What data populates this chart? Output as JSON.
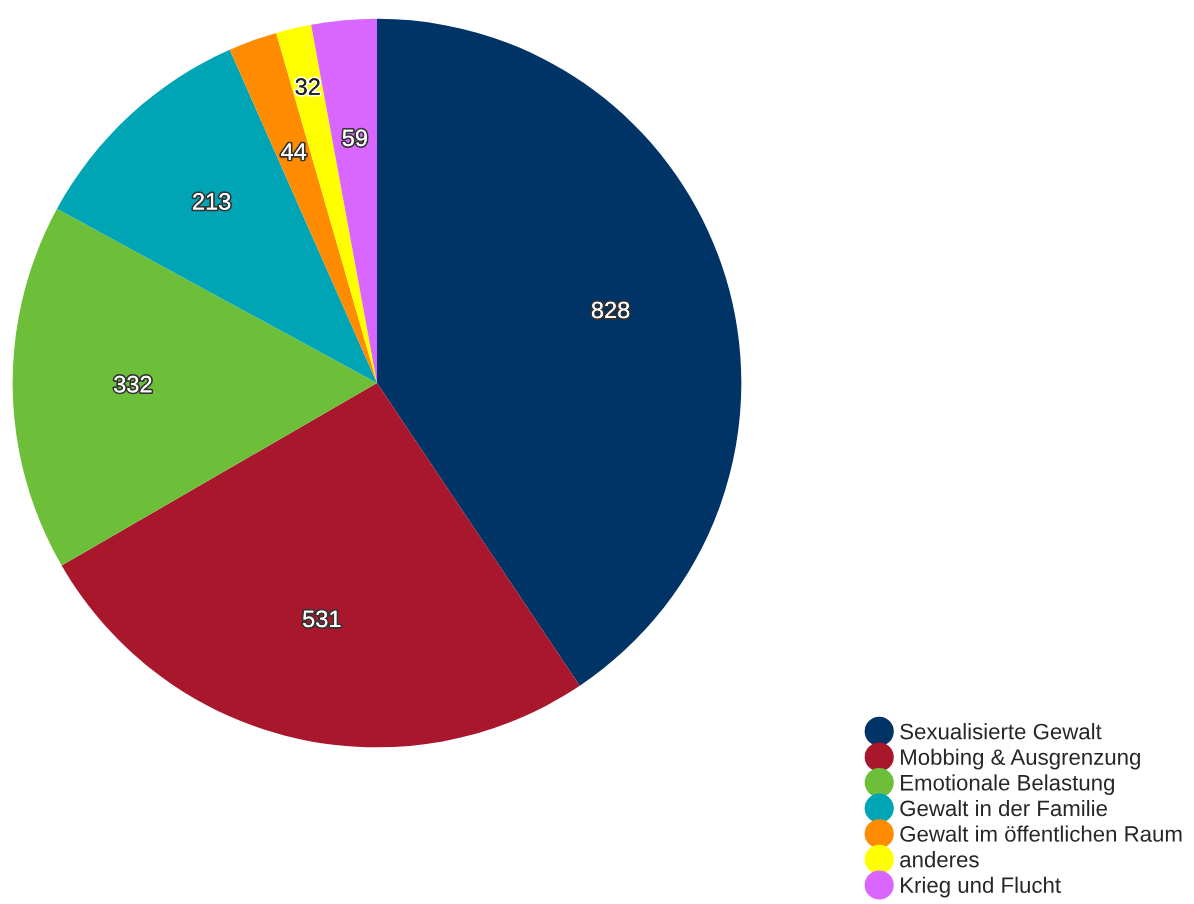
{
  "chart_data": {
    "type": "pie",
    "categories": [
      "Sexualisierte Gewalt",
      "Mobbing & Ausgrenzung",
      "Emotionale Belastung",
      "Gewalt in der Familie",
      "Gewalt im öffentlichen Raum",
      "anderes",
      "Krieg und Flucht"
    ],
    "values": [
      828,
      531,
      332,
      213,
      44,
      32,
      59
    ],
    "colors": [
      "#003366",
      "#a8172b",
      "#6dbf3a",
      "#00a5b5",
      "#ff8c00",
      "#ffff00",
      "#d966ff"
    ],
    "data_labels": true,
    "legend": "bottom right"
  }
}
